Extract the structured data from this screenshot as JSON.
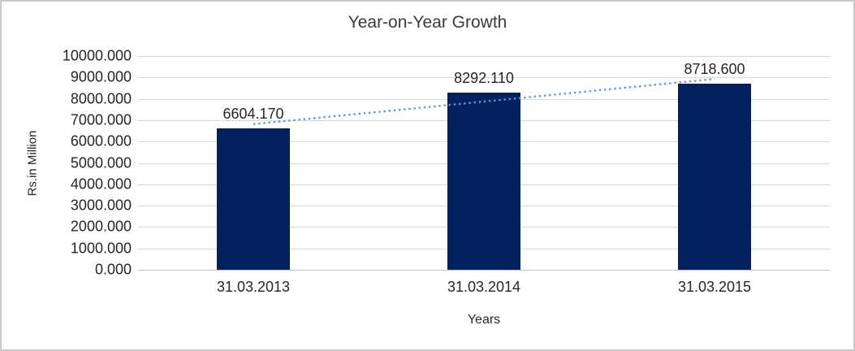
{
  "chart_data": {
    "type": "bar",
    "title": "Year-on-Year Growth",
    "xlabel": "Years",
    "ylabel": "Rs.in Million",
    "categories": [
      "31.03.2013",
      "31.03.2014",
      "31.03.2015"
    ],
    "values": [
      6604.17,
      8292.11,
      8718.6
    ],
    "value_labels": [
      "6604.170",
      "8292.110",
      "8718.600"
    ],
    "ylim": [
      0,
      10000
    ],
    "ytick_step": 1000,
    "ytick_labels": [
      "10000.000",
      "9000.000",
      "8000.000",
      "7000.000",
      "6000.000",
      "5000.000",
      "4000.000",
      "3000.000",
      "2000.000",
      "1000.000",
      "0.000"
    ],
    "grid": true,
    "legend": "none",
    "trendline": {
      "type": "linear",
      "style": "dotted"
    },
    "colors": {
      "bar": "#03215E",
      "trendline": "#5B9BD5",
      "gridline": "#D9D9D9",
      "axis_line": "#C3C3C3",
      "text": "#262626",
      "frame_border": "#C9C9C9",
      "background": "#FFFFFF"
    }
  }
}
